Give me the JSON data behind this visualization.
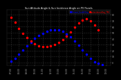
{
  "title": "Sun Altitude Angle & Sun Incidence Angle on PV Panels",
  "legend_entries": [
    "HOrizont_SunAltDeg",
    "SunIncidenceDeg_TRK"
  ],
  "legend_colors": [
    "#0000ff",
    "#ff0000"
  ],
  "ylabel_ticks": [
    0,
    10,
    20,
    30,
    40,
    50,
    60,
    70,
    80
  ],
  "xlim": [
    6.5,
    19.5
  ],
  "ylim": [
    -5,
    88
  ],
  "background_color": "#000000",
  "plot_bg_color": "#000000",
  "grid_color": "#555555",
  "title_color": "#ffffff",
  "tick_color": "#aaaaaa",
  "sun_altitude_x": [
    7.0,
    7.5,
    8.0,
    8.5,
    9.0,
    9.5,
    10.0,
    10.5,
    11.0,
    11.5,
    12.0,
    12.5,
    13.0,
    13.5,
    14.0,
    14.5,
    15.0,
    15.5,
    16.0,
    16.5,
    17.0,
    17.5,
    18.0,
    18.5
  ],
  "sun_altitude_y": [
    2,
    7,
    14,
    21,
    28,
    34,
    40,
    45,
    49,
    52,
    54,
    55,
    54,
    52,
    48,
    43,
    36,
    29,
    21,
    13,
    6,
    1,
    -2,
    -4
  ],
  "sun_incidence_x": [
    7.0,
    7.5,
    8.0,
    8.5,
    9.0,
    9.5,
    10.0,
    10.5,
    11.0,
    11.5,
    12.0,
    12.5,
    13.0,
    13.5,
    14.0,
    14.5,
    15.0,
    15.5,
    16.0,
    16.5,
    17.0,
    17.5,
    18.0
  ],
  "sun_incidence_y": [
    76,
    67,
    57,
    49,
    42,
    36,
    31,
    28,
    27,
    27,
    28,
    30,
    33,
    38,
    44,
    51,
    59,
    66,
    71,
    73,
    70,
    63,
    55
  ],
  "dot_size": 1.5
}
